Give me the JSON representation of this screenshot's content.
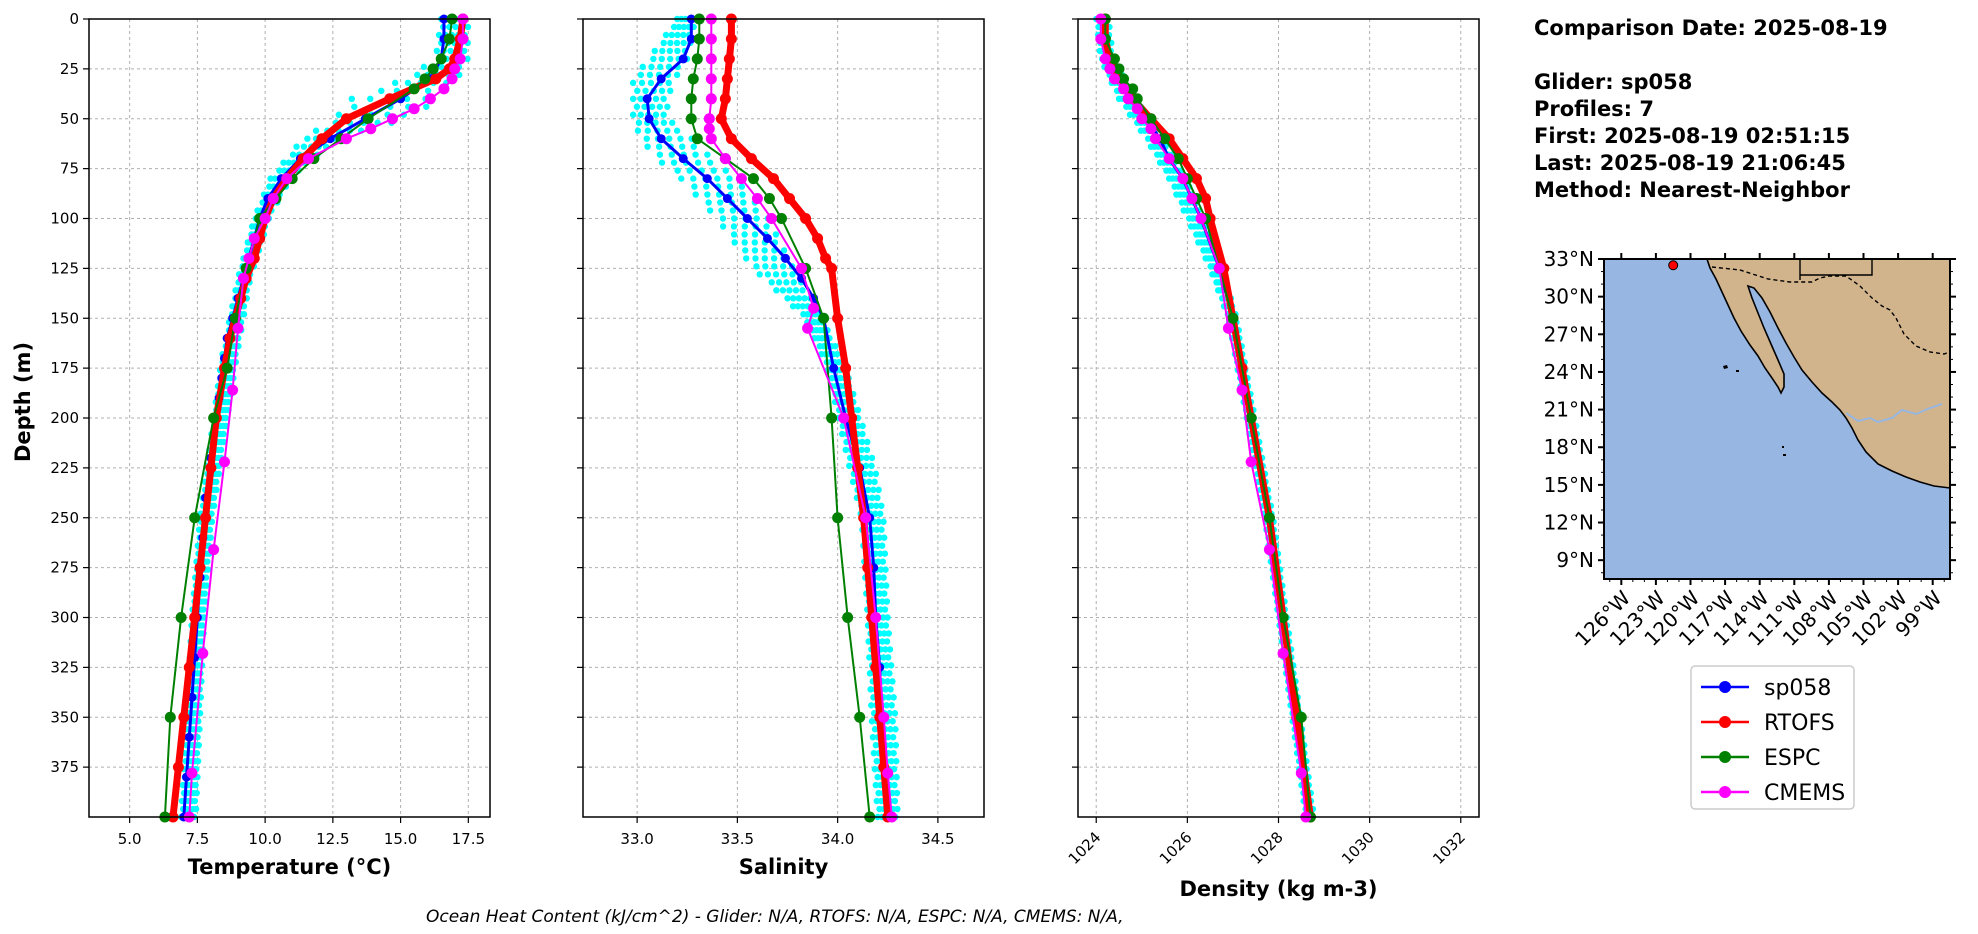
{
  "colors": {
    "glider": "#0000ff",
    "glider_profiles": "#00ffff",
    "rtofs": "#ff0000",
    "espc": "#008000",
    "cmems": "#ff00ff",
    "ocean": "#97b6e1",
    "land": "#d2b48c"
  },
  "shared": {
    "ylabel": "Depth (m)",
    "y_ticks": [
      0,
      25,
      50,
      75,
      100,
      125,
      150,
      175,
      200,
      225,
      250,
      275,
      300,
      325,
      350,
      375
    ],
    "ylim": [
      400,
      0
    ],
    "grid": true
  },
  "chart_data": [
    {
      "type": "line",
      "xlabel": "Temperature (°C)",
      "xlim": [
        3.5,
        18.3
      ],
      "x_ticks": [
        5.0,
        7.5,
        10.0,
        12.5,
        15.0,
        17.5
      ],
      "x_tick_labels": [
        "5.0",
        "7.5",
        "10.0",
        "12.5",
        "15.0",
        "17.5"
      ],
      "series": [
        {
          "name": "sp058",
          "depth": [
            0,
            10,
            20,
            30,
            40,
            50,
            60,
            70,
            80,
            90,
            100,
            110,
            120,
            130,
            140,
            150,
            160,
            170,
            180,
            190,
            200,
            220,
            240,
            260,
            280,
            300,
            320,
            340,
            360,
            380,
            400
          ],
          "values": [
            16.6,
            16.6,
            16.5,
            16.1,
            15.0,
            13.7,
            12.4,
            11.3,
            10.6,
            10.1,
            9.8,
            9.6,
            9.4,
            9.2,
            9.0,
            8.8,
            8.6,
            8.5,
            8.4,
            8.3,
            8.2,
            8.0,
            7.8,
            7.7,
            7.6,
            7.5,
            7.4,
            7.3,
            7.2,
            7.1,
            7.0
          ]
        },
        {
          "name": "RTOFS",
          "depth": [
            0,
            10,
            20,
            25,
            30,
            40,
            50,
            60,
            70,
            80,
            90,
            100,
            110,
            120,
            130,
            140,
            150,
            160,
            175,
            200,
            225,
            250,
            275,
            300,
            325,
            350,
            375,
            400
          ],
          "values": [
            17.3,
            17.2,
            17.0,
            16.8,
            16.3,
            14.6,
            13.0,
            12.1,
            11.4,
            10.8,
            10.3,
            10.0,
            9.8,
            9.6,
            9.3,
            9.1,
            8.9,
            8.7,
            8.5,
            8.2,
            8.0,
            7.8,
            7.6,
            7.4,
            7.2,
            7.0,
            6.8,
            6.6
          ]
        },
        {
          "name": "ESPC",
          "depth": [
            0,
            10,
            20,
            25,
            30,
            35,
            50,
            60,
            70,
            80,
            90,
            100,
            125,
            150,
            175,
            200,
            250,
            300,
            350,
            400
          ],
          "values": [
            16.9,
            16.8,
            16.5,
            16.2,
            15.9,
            15.5,
            13.8,
            12.8,
            11.8,
            11.0,
            10.4,
            9.8,
            9.3,
            8.9,
            8.6,
            8.1,
            7.4,
            6.9,
            6.5,
            6.3
          ]
        },
        {
          "name": "CMEMS",
          "depth": [
            0,
            10,
            20,
            25,
            30,
            35,
            40,
            45,
            50,
            55,
            60,
            70,
            80,
            90,
            100,
            110,
            120,
            130,
            155,
            186,
            222,
            266,
            318,
            378,
            400
          ],
          "values": [
            17.3,
            17.3,
            17.2,
            17.0,
            16.9,
            16.6,
            16.1,
            15.5,
            14.7,
            13.9,
            13.0,
            11.6,
            10.8,
            10.3,
            10.0,
            9.6,
            9.4,
            9.2,
            9.0,
            8.8,
            8.5,
            8.1,
            7.7,
            7.3,
            7.2
          ]
        }
      ],
      "glider_profile_spread": {
        "depth": [
          0,
          20,
          30,
          40,
          45,
          50,
          60,
          70,
          80,
          100,
          130,
          170,
          250,
          300,
          400
        ],
        "min": [
          16.5,
          16.3,
          15.2,
          13.2,
          12.9,
          12.6,
          11.4,
          10.8,
          10.2,
          9.6,
          9.0,
          8.4,
          7.6,
          7.3,
          6.9
        ],
        "max": [
          17.6,
          17.6,
          17.3,
          16.6,
          16.2,
          15.4,
          13.0,
          11.8,
          11.0,
          10.2,
          9.5,
          9.0,
          8.1,
          7.8,
          7.5
        ]
      }
    },
    {
      "type": "line",
      "xlabel": "Salinity",
      "xlim": [
        32.73,
        34.73
      ],
      "x_ticks": [
        33.0,
        33.5,
        34.0,
        34.5
      ],
      "x_tick_labels": [
        "33.0",
        "33.5",
        "34.0",
        "34.5"
      ],
      "series": [
        {
          "name": "sp058",
          "depth": [
            0,
            10,
            20,
            30,
            40,
            50,
            60,
            70,
            80,
            90,
            100,
            110,
            120,
            130,
            140,
            150,
            175,
            200,
            225,
            250,
            275,
            300,
            325,
            350,
            375,
            400
          ],
          "values": [
            33.27,
            33.27,
            33.23,
            33.12,
            33.05,
            33.06,
            33.12,
            33.23,
            33.35,
            33.45,
            33.55,
            33.65,
            33.74,
            33.82,
            33.88,
            33.93,
            33.98,
            34.04,
            34.11,
            34.16,
            34.18,
            34.19,
            34.21,
            34.22,
            34.23,
            34.25
          ]
        },
        {
          "name": "RTOFS",
          "depth": [
            0,
            10,
            20,
            30,
            40,
            50,
            60,
            70,
            80,
            90,
            100,
            110,
            120,
            125,
            150,
            175,
            200,
            225,
            250,
            275,
            300,
            325,
            350,
            375,
            400
          ],
          "values": [
            33.47,
            33.47,
            33.46,
            33.45,
            33.44,
            33.42,
            33.47,
            33.57,
            33.68,
            33.76,
            33.84,
            33.9,
            33.94,
            33.97,
            34.0,
            34.04,
            34.07,
            34.1,
            34.13,
            34.15,
            34.17,
            34.19,
            34.21,
            34.23,
            34.25
          ]
        },
        {
          "name": "ESPC",
          "depth": [
            0,
            10,
            20,
            30,
            40,
            50,
            60,
            70,
            80,
            90,
            100,
            125,
            150,
            200,
            250,
            300,
            350,
            400
          ],
          "values": [
            33.31,
            33.31,
            33.3,
            33.28,
            33.27,
            33.27,
            33.3,
            33.44,
            33.58,
            33.66,
            33.72,
            33.84,
            33.93,
            33.97,
            34.0,
            34.05,
            34.11,
            34.16
          ]
        },
        {
          "name": "CMEMS",
          "depth": [
            0,
            10,
            20,
            30,
            40,
            50,
            55,
            60,
            70,
            80,
            90,
            100,
            125,
            145,
            155,
            200,
            250,
            300,
            350,
            378,
            400
          ],
          "values": [
            33.37,
            33.37,
            33.37,
            33.37,
            33.37,
            33.36,
            33.36,
            33.37,
            33.44,
            33.52,
            33.6,
            33.67,
            33.82,
            33.88,
            33.85,
            34.03,
            34.14,
            34.19,
            34.23,
            34.25,
            34.27
          ]
        }
      ],
      "glider_profile_spread": {
        "depth": [
          0,
          20,
          30,
          40,
          50,
          60,
          70,
          80,
          100,
          125,
          150,
          175,
          225,
          250,
          300,
          350,
          400
        ],
        "min": [
          33.2,
          33.06,
          32.98,
          32.98,
          32.98,
          33.02,
          33.1,
          33.22,
          33.4,
          33.58,
          33.84,
          33.95,
          34.06,
          34.12,
          34.15,
          34.17,
          34.2
        ],
        "max": [
          33.3,
          33.27,
          33.21,
          33.17,
          33.17,
          33.3,
          33.4,
          33.52,
          33.68,
          33.8,
          33.93,
          34.05,
          34.2,
          34.24,
          34.26,
          34.3,
          34.31
        ]
      }
    },
    {
      "type": "line",
      "xlabel": "Density (kg m-3)",
      "xlim": [
        1023.6,
        1032.4
      ],
      "x_ticks": [
        1024,
        1026,
        1028,
        1030,
        1032
      ],
      "x_tick_labels": [
        "1024",
        "1026",
        "1028",
        "1030",
        "1032"
      ],
      "series": [
        {
          "name": "sp058",
          "depth": [
            0,
            10,
            20,
            30,
            40,
            50,
            60,
            70,
            80,
            90,
            100,
            125,
            150,
            175,
            200,
            250,
            300,
            350,
            400
          ],
          "values": [
            1024.2,
            1024.2,
            1024.3,
            1024.5,
            1024.8,
            1025.1,
            1025.4,
            1025.6,
            1025.9,
            1026.1,
            1026.3,
            1026.7,
            1027.0,
            1027.2,
            1027.4,
            1027.8,
            1028.1,
            1028.4,
            1028.7
          ]
        },
        {
          "name": "RTOFS",
          "depth": [
            0,
            10,
            20,
            30,
            40,
            50,
            60,
            70,
            80,
            90,
            100,
            125,
            150,
            175,
            200,
            250,
            300,
            350,
            400
          ],
          "values": [
            1024.2,
            1024.2,
            1024.3,
            1024.5,
            1024.8,
            1025.2,
            1025.6,
            1025.9,
            1026.2,
            1026.4,
            1026.5,
            1026.8,
            1027.0,
            1027.2,
            1027.4,
            1027.8,
            1028.1,
            1028.4,
            1028.7
          ]
        },
        {
          "name": "ESPC",
          "depth": [
            0,
            10,
            20,
            25,
            30,
            35,
            40,
            50,
            60,
            70,
            80,
            90,
            100,
            125,
            150,
            200,
            250,
            300,
            350,
            400
          ],
          "values": [
            1024.2,
            1024.2,
            1024.4,
            1024.5,
            1024.6,
            1024.8,
            1024.9,
            1025.2,
            1025.5,
            1025.8,
            1026.0,
            1026.2,
            1026.4,
            1026.7,
            1027.0,
            1027.4,
            1027.8,
            1028.1,
            1028.5,
            1028.7
          ]
        },
        {
          "name": "CMEMS",
          "depth": [
            0,
            10,
            20,
            25,
            30,
            35,
            40,
            45,
            50,
            55,
            60,
            70,
            80,
            90,
            100,
            125,
            155,
            186,
            222,
            266,
            318,
            378,
            400
          ],
          "values": [
            1024.1,
            1024.1,
            1024.2,
            1024.3,
            1024.4,
            1024.6,
            1024.7,
            1024.9,
            1025.0,
            1025.2,
            1025.3,
            1025.6,
            1025.9,
            1026.1,
            1026.3,
            1026.7,
            1026.9,
            1027.2,
            1027.4,
            1027.8,
            1028.1,
            1028.5,
            1028.6
          ]
        }
      ],
      "glider_profile_spread": {
        "depth": [
          0,
          20,
          40,
          60,
          80,
          100,
          125,
          150,
          200,
          250,
          300,
          400
        ],
        "min": [
          1024.0,
          1024.1,
          1024.5,
          1025.1,
          1025.6,
          1026.0,
          1026.5,
          1026.9,
          1027.3,
          1027.7,
          1028.0,
          1028.6
        ],
        "max": [
          1024.3,
          1024.4,
          1024.9,
          1025.5,
          1026.0,
          1026.4,
          1026.8,
          1027.1,
          1027.5,
          1027.9,
          1028.2,
          1028.8
        ]
      }
    }
  ],
  "info": {
    "comparison": "Comparison Date: 2025-08-19",
    "glider": "Glider: sp058",
    "profiles": "Profiles: 7",
    "first": "First: 2025-08-19 02:51:15",
    "last": "Last: 2025-08-19 21:06:45",
    "method": "Method: Nearest-Neighbor"
  },
  "map": {
    "lon_range": [
      -127.5,
      -97.5
    ],
    "lat_range": [
      7.5,
      33.0
    ],
    "lat_ticks": [
      "33°N",
      "30°N",
      "27°N",
      "24°N",
      "21°N",
      "18°N",
      "15°N",
      "12°N",
      "9°N"
    ],
    "lon_ticks": [
      "126°W",
      "123°W",
      "120°W",
      "117°W",
      "114°W",
      "111°W",
      "108°W",
      "105°W",
      "102°W",
      "99°W"
    ],
    "glider_location": {
      "lon": -121.5,
      "lat": 32.5
    }
  },
  "legend": [
    "sp058",
    "RTOFS",
    "ESPC",
    "CMEMS"
  ],
  "footer": "Ocean Heat Content (kJ/cm^2) - Glider: N/A,  RTOFS: N/A,  ESPC: N/A,  CMEMS: N/A,"
}
